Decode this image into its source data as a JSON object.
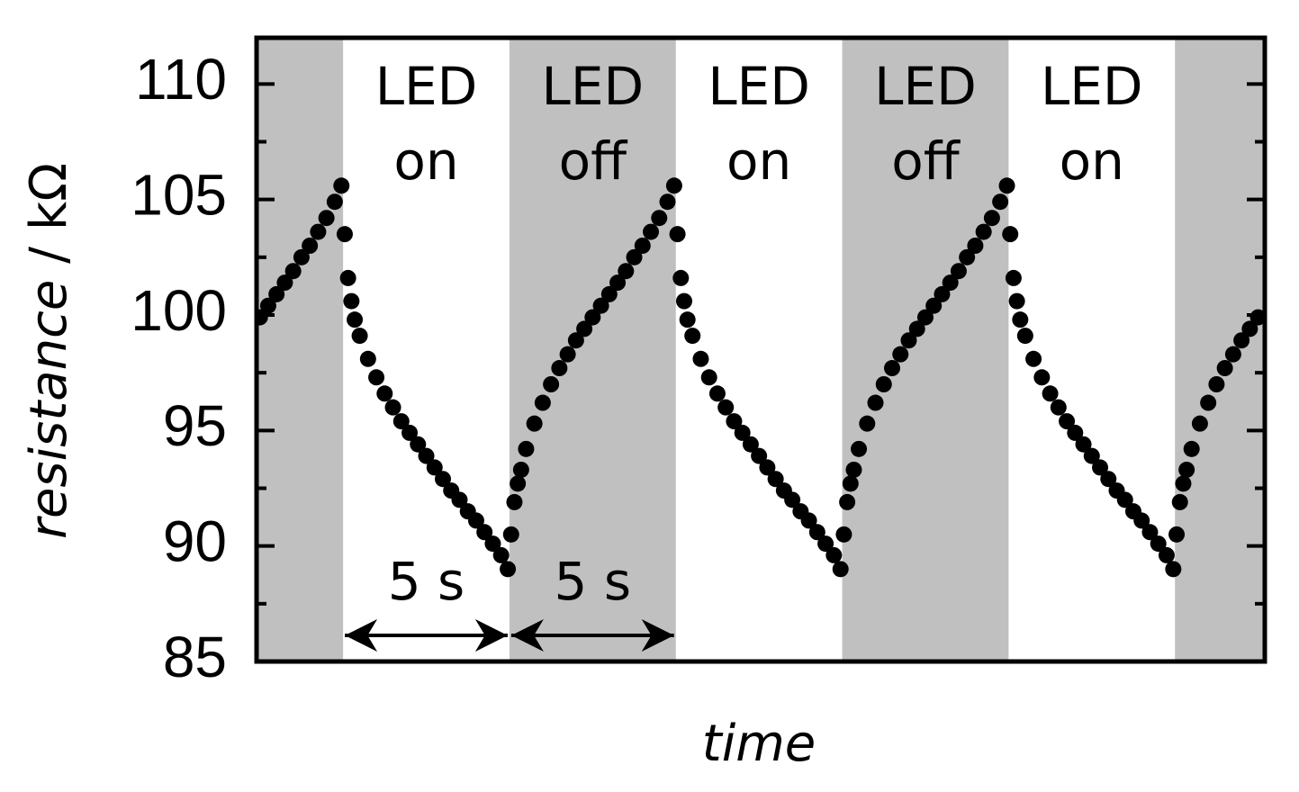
{
  "chart_data": {
    "type": "scatter",
    "x_label": "time",
    "y_label_quantity": "resistance",
    "y_label_unit": "/ kΩ",
    "color": "#000000",
    "shade_color": "#c0c0c0",
    "xlim": [
      0,
      30.3
    ],
    "ylim": [
      85,
      112
    ],
    "yticks": [
      85,
      90,
      95,
      100,
      105,
      110
    ],
    "yminor_ticks": [
      87.5,
      92.5,
      97.5,
      102.5,
      107.5
    ],
    "phases": [
      {
        "x0": 0,
        "x1": 2.6,
        "shaded": true
      },
      {
        "x0": 2.6,
        "x1": 7.6,
        "shaded": false,
        "label": [
          "LED",
          "on"
        ]
      },
      {
        "x0": 7.6,
        "x1": 12.6,
        "shaded": true,
        "label": [
          "LED",
          "off"
        ]
      },
      {
        "x0": 12.6,
        "x1": 17.6,
        "shaded": false,
        "label": [
          "LED",
          "on"
        ]
      },
      {
        "x0": 17.6,
        "x1": 22.6,
        "shaded": true,
        "label": [
          "LED",
          "off"
        ]
      },
      {
        "x0": 22.6,
        "x1": 27.6,
        "shaded": false,
        "label": [
          "LED",
          "on"
        ]
      },
      {
        "x0": 27.6,
        "x1": 30.3,
        "shaded": true
      }
    ],
    "spans": [
      {
        "x0": 2.6,
        "x1": 7.6,
        "label": "5 s"
      },
      {
        "x0": 7.6,
        "x1": 12.6,
        "label": "5 s"
      }
    ],
    "x": [
      0.1,
      0.35,
      0.6,
      0.85,
      1.1,
      1.35,
      1.6,
      1.85,
      2.1,
      2.35,
      2.55,
      2.65,
      2.75,
      2.85,
      2.95,
      3.1,
      3.35,
      3.6,
      3.85,
      4.1,
      4.35,
      4.6,
      4.85,
      5.1,
      5.35,
      5.6,
      5.85,
      6.1,
      6.35,
      6.6,
      6.85,
      7.1,
      7.35,
      7.55,
      7.65,
      7.75,
      7.85,
      7.95,
      8.1,
      8.35,
      8.6,
      8.85,
      9.1,
      9.35,
      9.6,
      9.85,
      10.1,
      10.35,
      10.6,
      10.85,
      11.1,
      11.35,
      11.6,
      11.85,
      12.1,
      12.35,
      12.55,
      12.65,
      12.75,
      12.85,
      12.95,
      13.1,
      13.35,
      13.6,
      13.85,
      14.1,
      14.35,
      14.6,
      14.85,
      15.1,
      15.35,
      15.6,
      15.85,
      16.1,
      16.35,
      16.6,
      16.85,
      17.1,
      17.35,
      17.55,
      17.65,
      17.75,
      17.85,
      17.95,
      18.1,
      18.35,
      18.6,
      18.85,
      19.1,
      19.35,
      19.6,
      19.85,
      20.1,
      20.35,
      20.6,
      20.85,
      21.1,
      21.35,
      21.6,
      21.85,
      22.1,
      22.35,
      22.55,
      22.65,
      22.75,
      22.85,
      22.95,
      23.1,
      23.35,
      23.6,
      23.85,
      24.1,
      24.35,
      24.6,
      24.85,
      25.1,
      25.35,
      25.6,
      25.85,
      26.1,
      26.35,
      26.6,
      26.85,
      27.1,
      27.35,
      27.55,
      27.65,
      27.75,
      27.85,
      27.95,
      28.1,
      28.35,
      28.6,
      28.85,
      29.1,
      29.35,
      29.6,
      29.85,
      30.1
    ],
    "values": [
      99.9,
      100.4,
      100.9,
      101.4,
      101.9,
      102.5,
      103.0,
      103.6,
      104.2,
      104.9,
      105.6,
      103.5,
      101.6,
      100.6,
      99.8,
      99.1,
      98.1,
      97.3,
      96.6,
      96.0,
      95.4,
      94.9,
      94.4,
      93.9,
      93.4,
      92.9,
      92.4,
      92.0,
      91.5,
      91.1,
      90.6,
      90.1,
      89.6,
      89.0,
      90.5,
      91.9,
      92.7,
      93.3,
      94.2,
      95.3,
      96.2,
      97.0,
      97.7,
      98.3,
      98.9,
      99.4,
      99.9,
      100.4,
      100.9,
      101.4,
      101.9,
      102.5,
      103.0,
      103.6,
      104.2,
      104.9,
      105.6,
      103.5,
      101.6,
      100.6,
      99.8,
      99.1,
      98.1,
      97.3,
      96.6,
      96.0,
      95.4,
      94.9,
      94.4,
      93.9,
      93.4,
      92.9,
      92.4,
      92.0,
      91.5,
      91.1,
      90.6,
      90.1,
      89.6,
      89.0,
      90.5,
      91.9,
      92.7,
      93.3,
      94.2,
      95.3,
      96.2,
      97.0,
      97.7,
      98.3,
      98.9,
      99.4,
      99.9,
      100.4,
      100.9,
      101.4,
      101.9,
      102.5,
      103.0,
      103.6,
      104.2,
      104.9,
      105.6,
      103.5,
      101.6,
      100.6,
      99.8,
      99.1,
      98.1,
      97.3,
      96.6,
      96.0,
      95.4,
      94.9,
      94.4,
      93.9,
      93.4,
      92.9,
      92.4,
      92.0,
      91.5,
      91.1,
      90.6,
      90.1,
      89.6,
      89.0,
      90.5,
      91.9,
      92.7,
      93.3,
      94.2,
      95.3,
      96.2,
      97.0,
      97.7,
      98.3,
      98.9,
      99.4,
      99.9
    ]
  }
}
